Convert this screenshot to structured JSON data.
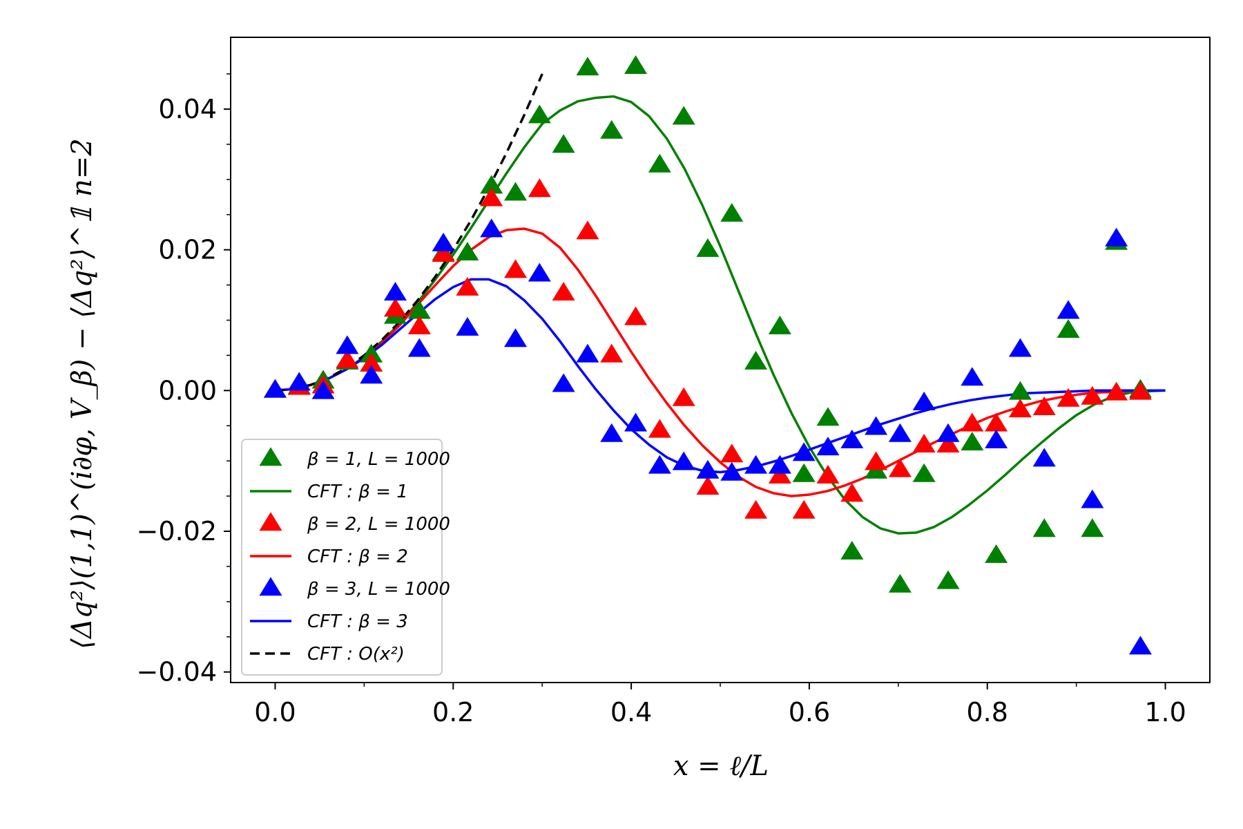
{
  "chart_data": {
    "type": "scatter",
    "xlabel": "x = ℓ/L",
    "ylabel": "⟨Δq²⟩(1,1)^(i∂φ, V_β) − ⟨Δq²⟩^𝟙 n=2",
    "xlim": [
      -0.05,
      1.05
    ],
    "ylim": [
      -0.0415,
      0.0502
    ],
    "x_ticks": [
      "0.0",
      "0.2",
      "0.4",
      "0.6",
      "0.8",
      "1.0"
    ],
    "y_ticks": [
      "−0.04",
      "−0.02",
      "0.00",
      "0.02",
      "0.04"
    ],
    "grid": false,
    "legend_position": "lower-left",
    "series": [
      {
        "name": "β = 1, L = 1000",
        "kind": "scatter",
        "color": "#008000",
        "x": [
          0.0,
          0.027,
          0.054,
          0.081,
          0.108,
          0.135,
          0.162,
          0.189,
          0.216,
          0.243,
          0.27,
          0.297,
          0.324,
          0.351,
          0.378,
          0.405,
          0.432,
          0.459,
          0.486,
          0.513,
          0.54,
          0.567,
          0.594,
          0.621,
          0.648,
          0.675,
          0.702,
          0.729,
          0.756,
          0.783,
          0.81,
          0.837,
          0.864,
          0.891,
          0.918,
          0.945,
          0.972
        ],
        "y": [
          0.0,
          0.0005,
          0.0013,
          0.004,
          0.005,
          0.0105,
          0.0112,
          0.0195,
          0.0195,
          0.029,
          0.028,
          0.039,
          0.0348,
          0.0458,
          0.0368,
          0.046,
          0.032,
          0.0388,
          0.02,
          0.025,
          0.004,
          0.009,
          -0.012,
          -0.004,
          -0.023,
          -0.0115,
          -0.0277,
          -0.012,
          -0.0272,
          -0.0075,
          -0.0235,
          -0.0003,
          -0.0198,
          0.0085,
          -0.0198,
          0.021,
          0.0
        ]
      },
      {
        "name": "CFT : β = 1",
        "kind": "line",
        "color": "#008000",
        "x": [
          0.0,
          0.02,
          0.04,
          0.06,
          0.08,
          0.1,
          0.12,
          0.14,
          0.16,
          0.18,
          0.2,
          0.22,
          0.24,
          0.26,
          0.28,
          0.3,
          0.32,
          0.34,
          0.36,
          0.38,
          0.4,
          0.42,
          0.44,
          0.46,
          0.48,
          0.5,
          0.52,
          0.54,
          0.56,
          0.58,
          0.6,
          0.62,
          0.64,
          0.66,
          0.68,
          0.7,
          0.72,
          0.74,
          0.76,
          0.78,
          0.8,
          0.82,
          0.84,
          0.86,
          0.88,
          0.9,
          0.92,
          0.94,
          0.96,
          0.98,
          1.0
        ],
        "y": [
          0.0,
          0.0002,
          0.0008,
          0.0017,
          0.003,
          0.0048,
          0.007,
          0.0095,
          0.0125,
          0.0158,
          0.0193,
          0.0231,
          0.027,
          0.0309,
          0.0346,
          0.0379,
          0.0398,
          0.0411,
          0.0416,
          0.0418,
          0.041,
          0.039,
          0.0358,
          0.0315,
          0.0263,
          0.0205,
          0.0143,
          0.0081,
          0.0022,
          -0.0032,
          -0.008,
          -0.0121,
          -0.0155,
          -0.018,
          -0.0196,
          -0.0203,
          -0.0202,
          -0.0194,
          -0.018,
          -0.0162,
          -0.0142,
          -0.012,
          -0.0097,
          -0.0075,
          -0.0054,
          -0.0035,
          -0.002,
          -0.0009,
          -0.0003,
          -0.0001,
          0.0
        ]
      },
      {
        "name": "β = 2, L = 1000",
        "kind": "scatter",
        "color": "#ff0000",
        "x": [
          0.0,
          0.027,
          0.054,
          0.081,
          0.108,
          0.135,
          0.162,
          0.189,
          0.216,
          0.243,
          0.27,
          0.297,
          0.324,
          0.351,
          0.378,
          0.405,
          0.432,
          0.459,
          0.486,
          0.513,
          0.54,
          0.567,
          0.594,
          0.621,
          0.648,
          0.675,
          0.702,
          0.729,
          0.756,
          0.783,
          0.81,
          0.837,
          0.864,
          0.891,
          0.918,
          0.945,
          0.972
        ],
        "y": [
          0.0,
          0.0004,
          0.0006,
          0.0042,
          0.0037,
          0.0115,
          0.009,
          0.0193,
          0.0145,
          0.0272,
          0.017,
          0.0285,
          0.0138,
          0.0225,
          0.005,
          0.0103,
          -0.0057,
          -0.0012,
          -0.0138,
          -0.0092,
          -0.0172,
          -0.0122,
          -0.0172,
          -0.0122,
          -0.0148,
          -0.0103,
          -0.0113,
          -0.0078,
          -0.0078,
          -0.0048,
          -0.0048,
          -0.0028,
          -0.0025,
          -0.0013,
          -0.001,
          -0.0004,
          -0.0003
        ]
      },
      {
        "name": "CFT : β = 2",
        "kind": "line",
        "color": "#ff0000",
        "x": [
          0.0,
          0.02,
          0.04,
          0.06,
          0.08,
          0.1,
          0.12,
          0.14,
          0.16,
          0.18,
          0.2,
          0.22,
          0.24,
          0.26,
          0.28,
          0.3,
          0.32,
          0.34,
          0.36,
          0.38,
          0.4,
          0.42,
          0.44,
          0.46,
          0.48,
          0.5,
          0.52,
          0.54,
          0.56,
          0.58,
          0.6,
          0.62,
          0.64,
          0.66,
          0.68,
          0.7,
          0.72,
          0.74,
          0.76,
          0.78,
          0.8,
          0.82,
          0.84,
          0.86,
          0.88,
          0.9,
          0.92,
          0.94,
          0.96,
          0.98,
          1.0
        ],
        "y": [
          0.0,
          0.0002,
          0.0008,
          0.0017,
          0.003,
          0.0047,
          0.0068,
          0.0093,
          0.0122,
          0.015,
          0.0177,
          0.02,
          0.0218,
          0.0228,
          0.023,
          0.0223,
          0.0203,
          0.0172,
          0.0135,
          0.0095,
          0.0055,
          0.0017,
          -0.0018,
          -0.005,
          -0.0078,
          -0.0102,
          -0.0122,
          -0.0137,
          -0.0146,
          -0.015,
          -0.0148,
          -0.0143,
          -0.0135,
          -0.0125,
          -0.0113,
          -0.01,
          -0.0087,
          -0.0074,
          -0.0062,
          -0.005,
          -0.0039,
          -0.003,
          -0.0022,
          -0.0015,
          -0.001,
          -0.0006,
          -0.0003,
          -0.0002,
          -0.0001,
          0.0,
          0.0
        ]
      },
      {
        "name": "β = 3, L = 1000",
        "kind": "scatter",
        "color": "#0000ff",
        "x": [
          0.0,
          0.027,
          0.054,
          0.081,
          0.108,
          0.135,
          0.162,
          0.189,
          0.216,
          0.243,
          0.27,
          0.297,
          0.324,
          0.351,
          0.378,
          0.405,
          0.432,
          0.459,
          0.486,
          0.513,
          0.54,
          0.567,
          0.594,
          0.621,
          0.648,
          0.675,
          0.702,
          0.729,
          0.756,
          0.783,
          0.81,
          0.837,
          0.864,
          0.891,
          0.918,
          0.945,
          0.972
        ],
        "y": [
          0.0,
          0.001,
          -0.0002,
          0.0062,
          0.002,
          0.0138,
          0.0058,
          0.0208,
          0.0088,
          0.0228,
          0.0072,
          0.0165,
          0.0008,
          0.005,
          -0.0063,
          -0.0048,
          -0.0108,
          -0.0103,
          -0.0115,
          -0.0118,
          -0.0108,
          -0.0108,
          -0.009,
          -0.0082,
          -0.0072,
          -0.0053,
          -0.0063,
          -0.0018,
          -0.0063,
          0.0017,
          -0.0072,
          0.0058,
          -0.0098,
          0.0112,
          -0.0157,
          0.0215,
          -0.0365
        ]
      },
      {
        "name": "CFT : β = 3",
        "kind": "line",
        "color": "#0000ff",
        "x": [
          0.0,
          0.02,
          0.04,
          0.06,
          0.08,
          0.1,
          0.12,
          0.14,
          0.16,
          0.18,
          0.2,
          0.22,
          0.24,
          0.26,
          0.28,
          0.3,
          0.32,
          0.34,
          0.36,
          0.38,
          0.4,
          0.42,
          0.44,
          0.46,
          0.48,
          0.5,
          0.52,
          0.54,
          0.56,
          0.58,
          0.6,
          0.62,
          0.64,
          0.66,
          0.68,
          0.7,
          0.72,
          0.74,
          0.76,
          0.78,
          0.8,
          0.82,
          0.84,
          0.86,
          0.88,
          0.9,
          0.92,
          0.94,
          0.96,
          0.98,
          1.0
        ],
        "y": [
          0.0,
          0.0002,
          0.0008,
          0.0017,
          0.003,
          0.0046,
          0.0065,
          0.0087,
          0.0109,
          0.013,
          0.0147,
          0.0158,
          0.0158,
          0.0148,
          0.0128,
          0.0102,
          0.007,
          0.0035,
          0.0002,
          -0.0028,
          -0.0055,
          -0.0077,
          -0.0095,
          -0.0107,
          -0.0114,
          -0.0116,
          -0.0113,
          -0.0108,
          -0.0101,
          -0.0093,
          -0.0084,
          -0.0075,
          -0.0066,
          -0.0057,
          -0.0048,
          -0.004,
          -0.0032,
          -0.0025,
          -0.0019,
          -0.0014,
          -0.001,
          -0.0007,
          -0.0004,
          -0.0003,
          -0.0002,
          -0.0001,
          0.0,
          0.0,
          0.0,
          0.0,
          0.0
        ]
      },
      {
        "name": "CFT : O(x²)",
        "kind": "dashed",
        "color": "#000000",
        "x": [
          0.0,
          0.02,
          0.04,
          0.06,
          0.08,
          0.1,
          0.12,
          0.14,
          0.16,
          0.18,
          0.2,
          0.22,
          0.24,
          0.26,
          0.28,
          0.3
        ],
        "y": [
          0.0,
          0.0002,
          0.0008,
          0.0018,
          0.0032,
          0.005,
          0.0072,
          0.0098,
          0.0128,
          0.0162,
          0.02,
          0.0242,
          0.0288,
          0.0338,
          0.0392,
          0.045
        ]
      }
    ]
  }
}
